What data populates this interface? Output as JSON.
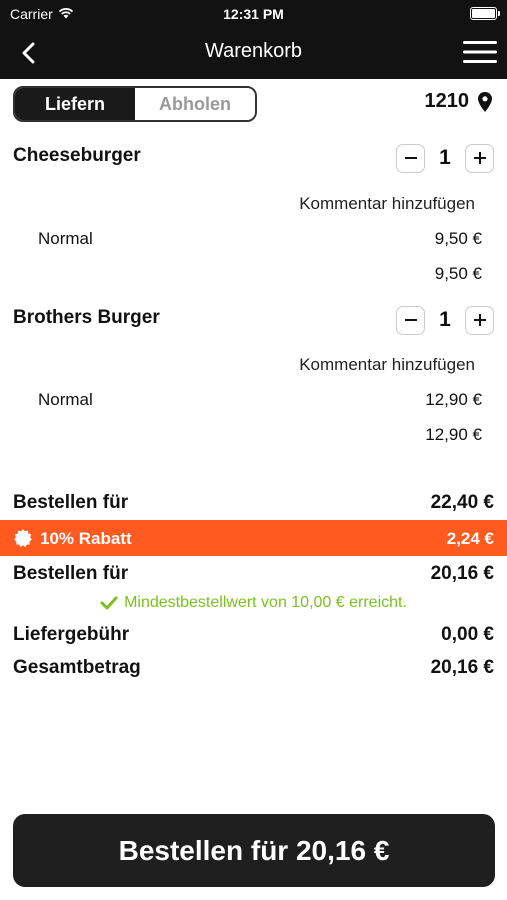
{
  "status": {
    "carrier": "Carrier",
    "time": "12:31 PM"
  },
  "nav": {
    "title": "Warenkorb",
    "back_icon": "chevron-left-icon",
    "menu_icon": "hamburger-menu-icon"
  },
  "mode": {
    "deliver": "Liefern",
    "pickup": "Abholen",
    "selected": "Liefern"
  },
  "location": {
    "code": "1210",
    "icon": "map-pin-icon"
  },
  "items": [
    {
      "name": "Cheeseburger",
      "qty": "1",
      "comment": "Kommentar hinzufügen",
      "option": "Normal",
      "option_price": "9,50 €",
      "total": "9,50 €"
    },
    {
      "name": "Brothers Burger",
      "qty": "1",
      "comment": "Kommentar hinzufügen",
      "option": "Normal",
      "option_price": "12,90 €",
      "total": "12,90 €"
    }
  ],
  "summary": {
    "subtotal_label": "Bestellen für",
    "subtotal_value": "22,40 €",
    "discount_label": "10% Rabatt",
    "discount_value": "2,24 €",
    "after_discount_label": "Bestellen für",
    "after_discount_value": "20,16 €",
    "min_order_note": "Mindestbestellwert von 10,00 € erreicht.",
    "delivery_fee_label": "Liefergebühr",
    "delivery_fee_value": "0,00 €",
    "total_label": "Gesamtbetrag",
    "total_value": "20,16 €"
  },
  "order_button": "Bestellen für 20,16 €",
  "colors": {
    "header": "#121212",
    "accent_orange": "#ff5a1f",
    "success_green": "#7bc11e"
  }
}
